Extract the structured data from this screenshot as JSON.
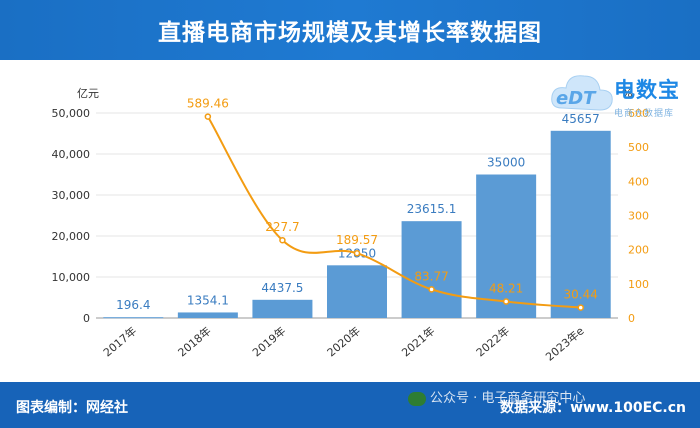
{
  "header": {
    "title": "直播电商市场规模及其增长率数据图"
  },
  "logo": {
    "brand": "电数宝",
    "sub": "电商大数据库",
    "mark": "eDT"
  },
  "footer": {
    "left": "图表编制：网经社",
    "wechat": "公众号 · 电子商务研究中心",
    "right": "数据来源：www.100EC.cn"
  },
  "chart_data": {
    "type": "bar",
    "categories": [
      "2017年",
      "2018年",
      "2019年",
      "2020年",
      "2021年",
      "2022年",
      "2023年e"
    ],
    "series": [
      {
        "values": [
          196.4,
          1354.1,
          4437.5,
          12850,
          23615.1,
          35000,
          45657
        ],
        "labels": [
          "196.4",
          "1354.1",
          "4437.5",
          "12850",
          "23615.1",
          "35000",
          "45657"
        ],
        "color": "#5b9bd5",
        "type": "bar"
      },
      {
        "values": [
          null,
          589.46,
          227.7,
          189.57,
          83.77,
          48.21,
          30.44
        ],
        "labels": [
          "",
          "589.46",
          "227.7",
          "189.57",
          "83.77",
          "48.21",
          "30.44"
        ],
        "color": "#f39c12",
        "type": "line"
      }
    ],
    "ylabel": "亿元",
    "y2label": "%",
    "ylim": [
      0,
      50000
    ],
    "y2lim": [
      0,
      600
    ],
    "yticks": [
      "0",
      "10,000",
      "20,000",
      "30,000",
      "40,000",
      "50,000"
    ],
    "y2ticks": [
      "0",
      "100",
      "200",
      "300",
      "400",
      "500",
      "600"
    ],
    "grid": true
  }
}
